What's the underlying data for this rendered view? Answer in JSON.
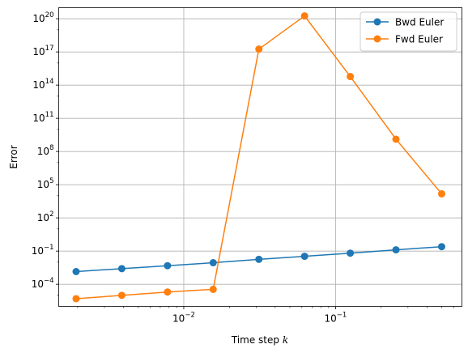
{
  "chart_data": {
    "type": "line",
    "xlabel": "Time step",
    "xlabel_var": "k",
    "ylabel": "Error",
    "xscale": "log",
    "yscale": "log",
    "xlim": [
      0.0015,
      0.68
    ],
    "ylim": [
      1e-06,
      1e+21
    ],
    "grid": true,
    "legend_position": "top-right",
    "x_ticks": [
      {
        "value": 0.01,
        "base": "10",
        "exp": "−2"
      },
      {
        "value": 0.1,
        "base": "10",
        "exp": "−1"
      }
    ],
    "y_ticks": [
      {
        "value": 0.0001,
        "base": "10",
        "exp": "−4"
      },
      {
        "value": 0.1,
        "base": "10",
        "exp": "−1"
      },
      {
        "value": 100.0,
        "base": "10",
        "exp": "2"
      },
      {
        "value": 100000.0,
        "base": "10",
        "exp": "5"
      },
      {
        "value": 100000000.0,
        "base": "10",
        "exp": "8"
      },
      {
        "value": 100000000000.0,
        "base": "10",
        "exp": "11"
      },
      {
        "value": 100000000000000.0,
        "base": "10",
        "exp": "14"
      },
      {
        "value": 1e+17,
        "base": "10",
        "exp": "17"
      },
      {
        "value": 1e+20,
        "base": "10",
        "exp": "20"
      }
    ],
    "x": [
      0.001953125,
      0.00390625,
      0.0078125,
      0.015625,
      0.03125,
      0.0625,
      0.125,
      0.25,
      0.5
    ],
    "series": [
      {
        "name": "Bwd Euler",
        "color": "#1f77b4",
        "values": [
          0.0014,
          0.0026,
          0.0048,
          0.0089,
          0.018,
          0.034,
          0.065,
          0.13,
          0.25
        ]
      },
      {
        "name": "Fwd Euler",
        "color": "#ff7f0e",
        "values": [
          5e-06,
          1e-05,
          2e-05,
          3.5e-05,
          1.8e+17,
          1.8e+20,
          600000000000000.0,
          1300000000.0,
          15000.0
        ]
      }
    ]
  }
}
